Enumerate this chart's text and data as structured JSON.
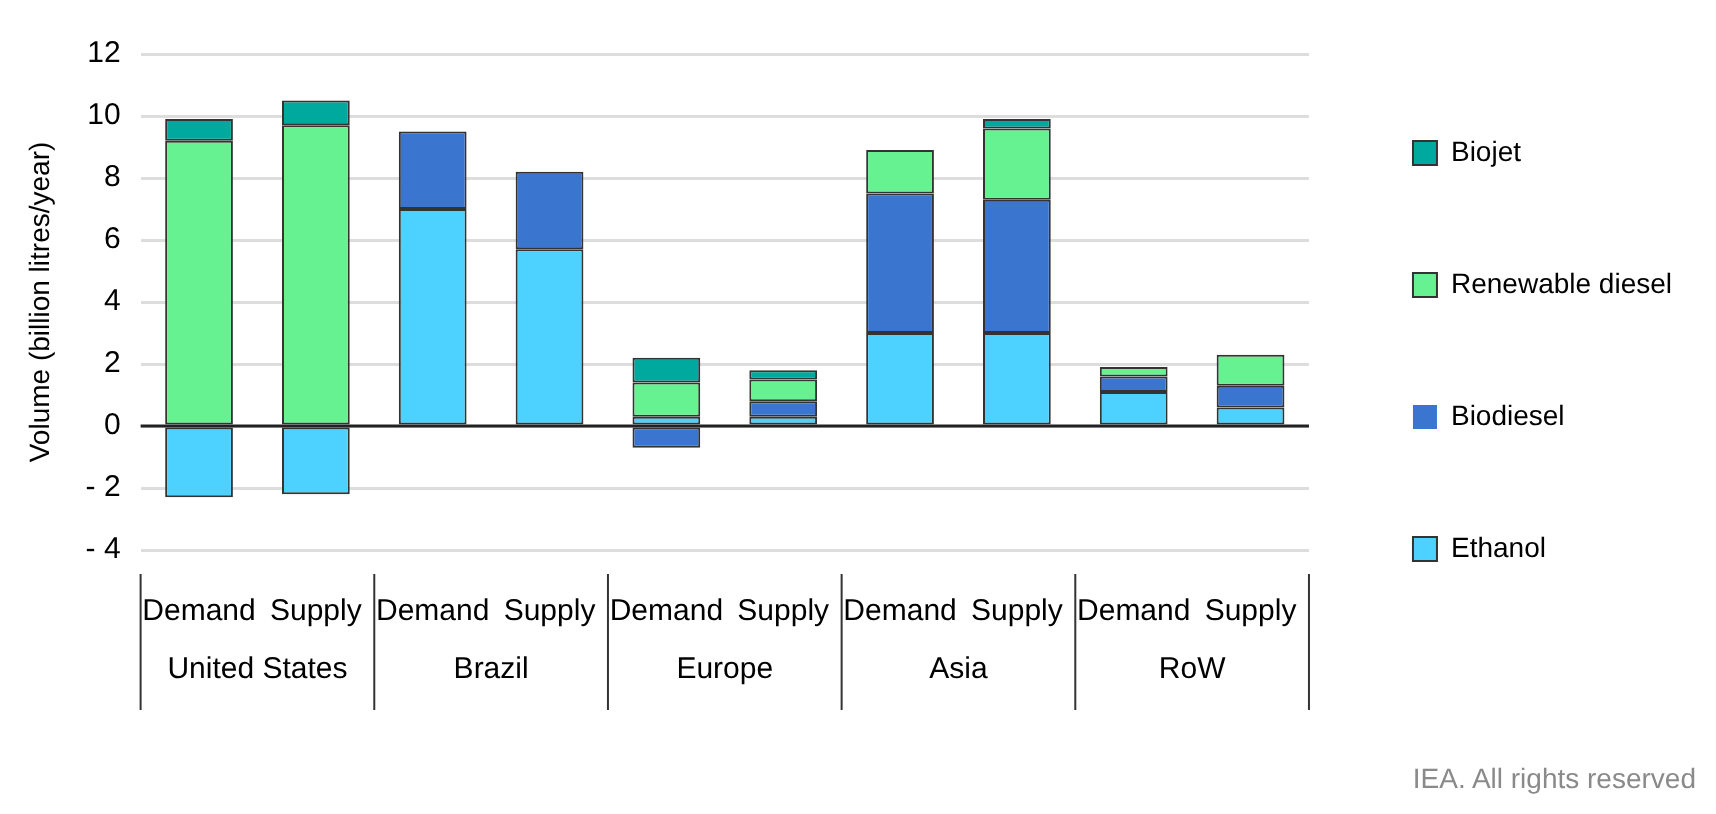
{
  "chart_data": {
    "type": "bar",
    "stacked": true,
    "ylabel": "Volume (billion litres/year)",
    "categories": [
      "Demand",
      "Supply",
      "Demand",
      "Supply",
      "Demand",
      "Supply",
      "Demand",
      "Supply",
      "Demand",
      "Supply"
    ],
    "series": [
      {
        "name": "Ethanol",
        "color": "#4dd2ff",
        "values": [
          -2.3,
          -2.2,
          7.0,
          5.7,
          0.3,
          0.3,
          3.0,
          3.0,
          1.1,
          0.6
        ]
      },
      {
        "name": "Biodiesel",
        "color": "#3a75d0",
        "values": [
          0,
          0,
          2.5,
          2.5,
          -0.7,
          0.5,
          4.5,
          4.3,
          0.5,
          0.7
        ]
      },
      {
        "name": "Renewable diesel",
        "color": "#66f291",
        "values": [
          9.2,
          9.7,
          0,
          0,
          1.1,
          0.7,
          1.4,
          2.3,
          0.3,
          1.0
        ]
      },
      {
        "name": "Biojet",
        "color": "#00a99d",
        "values": [
          0.7,
          0.8,
          0,
          0,
          0.8,
          0.3,
          0,
          0.3,
          0,
          0
        ]
      }
    ],
    "ylim": [
      -4,
      12
    ],
    "yticks": [
      {
        "value": -4,
        "label": "- 4"
      },
      {
        "value": -2,
        "label": "- 2"
      },
      0,
      2,
      4,
      6,
      8,
      10,
      12
    ],
    "grid": "y",
    "legend": "right",
    "annotations": [
      "United States",
      "Brazil",
      "Europe",
      "Asia",
      "RoW",
      "IEA. All rights reserved"
    ]
  }
}
